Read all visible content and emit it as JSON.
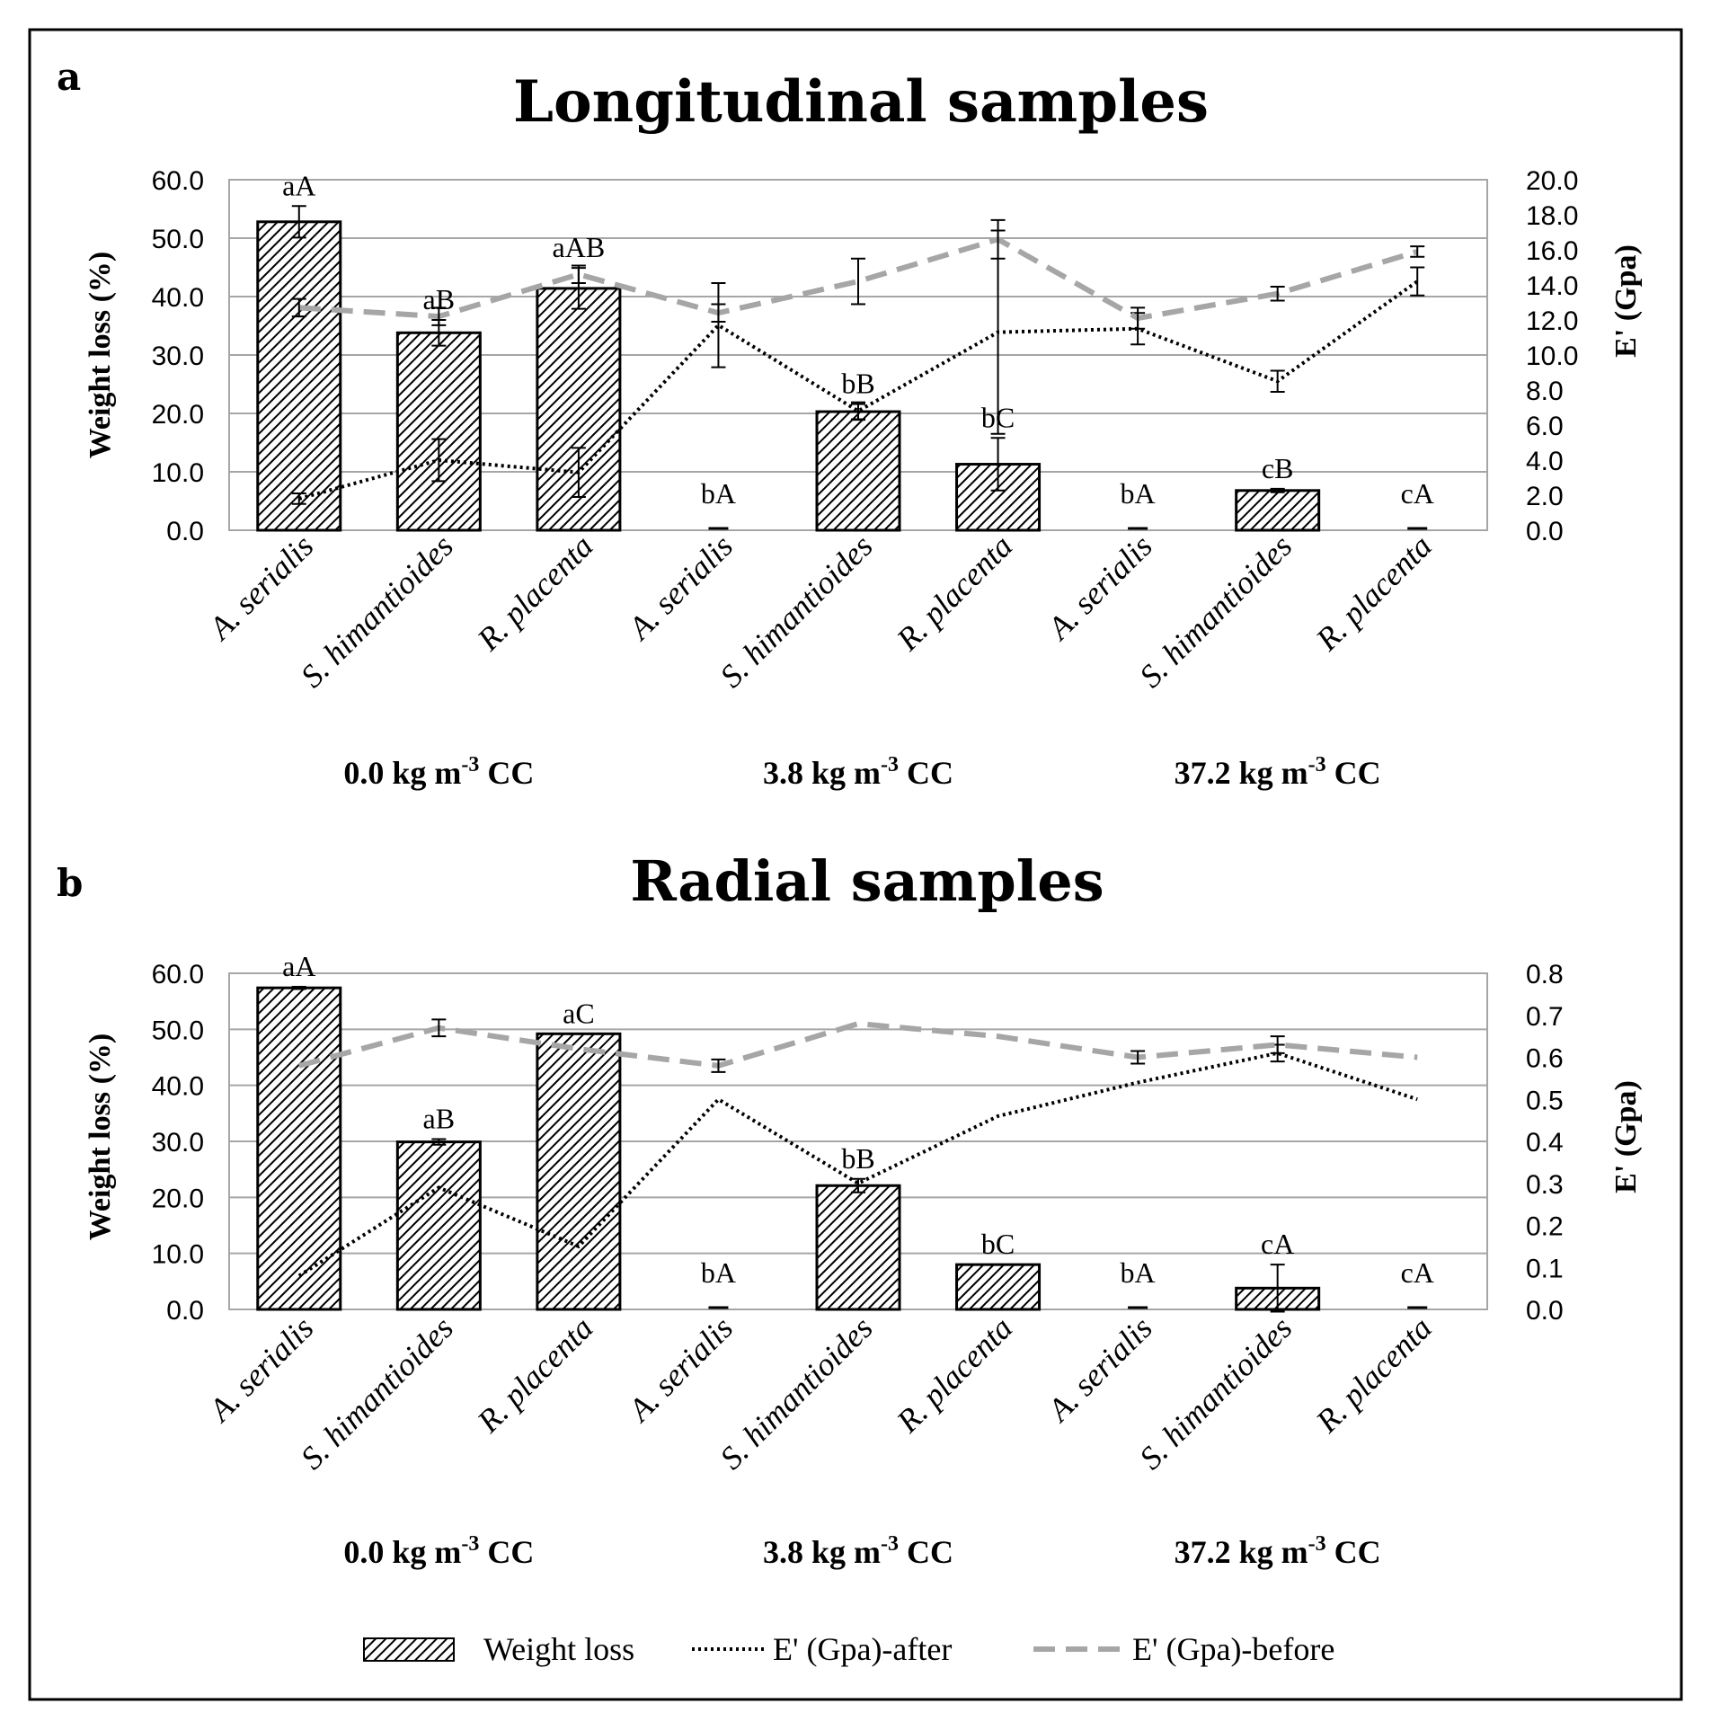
{
  "chart_data": [
    {
      "panel_label": "a",
      "title": "Longitudinal samples",
      "type": "bar+line",
      "categories": [
        "A. serialis",
        "S. himantioides",
        "R. placenta",
        "A. serialis",
        "S. himantioides",
        "R. placenta",
        "A. serialis",
        "S. himantioides",
        "R. placenta"
      ],
      "groups": [
        {
          "label_main": "0.0 kg m",
          "label_sup": "-3",
          "label_tail": " CC"
        },
        {
          "label_main": "3.8 kg m",
          "label_sup": "-3",
          "label_tail": "  CC"
        },
        {
          "label_main": "37.2 kg m",
          "label_sup": "-3",
          "label_tail": " CC"
        }
      ],
      "ylabel_left": "Weight loss (%)",
      "ylabel_right": "E' (Gpa)",
      "ylim_left": [
        0,
        60
      ],
      "ylim_right": [
        0,
        20
      ],
      "yticks_left": [
        "0.0",
        "10.0",
        "20.0",
        "30.0",
        "40.0",
        "50.0",
        "60.0"
      ],
      "yticks_right": [
        "0.0",
        "2.0",
        "4.0",
        "6.0",
        "8.0",
        "10.0",
        "12.0",
        "14.0",
        "16.0",
        "18.0",
        "20.0"
      ],
      "weight_loss": [
        52.8,
        33.8,
        41.4,
        0.2,
        20.3,
        11.3,
        0.2,
        6.8,
        0.1
      ],
      "weight_loss_err": [
        2.7,
        2.2,
        3.5,
        0,
        1.3,
        4.5,
        0,
        0.3,
        0
      ],
      "letters": [
        "aA",
        "aB",
        "aAB",
        "bA",
        "bB",
        "bC",
        "bA",
        "cB",
        "cA"
      ],
      "series": [
        {
          "name": "E' (Gpa)-after",
          "style": "dotted",
          "values": [
            1.8,
            4.0,
            3.3,
            11.7,
            6.8,
            11.3,
            11.5,
            8.5,
            14.2
          ],
          "errors": [
            0.3,
            1.2,
            1.4,
            2.4,
            0.5,
            5.8,
            0.9,
            0.6,
            0.8
          ]
        },
        {
          "name": "E' (Gpa)-before",
          "style": "dashed",
          "values": [
            12.7,
            12.2,
            14.6,
            12.4,
            14.2,
            16.6,
            12.1,
            13.5,
            15.9
          ],
          "errors": [
            0.5,
            0.5,
            0.5,
            0.5,
            1.3,
            1.1,
            0.6,
            0.4,
            0.3
          ]
        }
      ]
    },
    {
      "panel_label": "b",
      "title": "Radial samples",
      "type": "bar+line",
      "categories": [
        "A. serialis",
        "S. himantioides",
        "R. placenta",
        "A. serialis",
        "S. himantioides",
        "R. placenta",
        "A. serialis",
        "S. himantioides",
        "R. placenta"
      ],
      "groups": [
        {
          "label_main": "0.0 kg m",
          "label_sup": "-3",
          "label_tail": " CC"
        },
        {
          "label_main": "3.8 kg m",
          "label_sup": "-3",
          "label_tail": "  CC"
        },
        {
          "label_main": "37.2 kg m",
          "label_sup": "-3",
          "label_tail": " CC"
        }
      ],
      "ylabel_left": "Weight loss (%)",
      "ylabel_right": "E' (Gpa)",
      "ylim_left": [
        0,
        60
      ],
      "ylim_right": [
        0,
        0.8
      ],
      "yticks_left": [
        "0.0",
        "10.0",
        "20.0",
        "30.0",
        "40.0",
        "50.0",
        "60.0"
      ],
      "yticks_right": [
        "0.0",
        "0.1",
        "0.2",
        "0.3",
        "0.4",
        "0.5",
        "0.6",
        "0.7",
        "0.8"
      ],
      "weight_loss": [
        57.4,
        29.9,
        49.2,
        0.2,
        22.1,
        8.0,
        0.2,
        3.8,
        0.0
      ],
      "weight_loss_err": [
        0.2,
        0.5,
        0.0,
        0,
        1.2,
        0,
        0,
        4.2,
        0
      ],
      "letters": [
        "aA",
        "aB",
        "aC",
        "bA",
        "bB",
        "bC",
        "bA",
        "cA",
        "cA"
      ],
      "series": [
        {
          "name": "E' (Gpa)-after",
          "style": "dotted",
          "values": [
            0.08,
            0.29,
            0.15,
            0.5,
            0.3,
            0.46,
            0.54,
            0.61,
            0.5
          ],
          "errors": [
            0.0,
            0.0,
            0.0,
            0.0,
            0.0,
            0.0,
            0.0,
            0.02,
            0.0
          ]
        },
        {
          "name": "E' (Gpa)-before",
          "style": "dashed",
          "values": [
            0.58,
            0.67,
            0.62,
            0.58,
            0.68,
            0.65,
            0.6,
            0.63,
            0.6
          ],
          "errors": [
            0.0,
            0.02,
            0.0,
            0.015,
            0.0,
            0.0,
            0.015,
            0.02,
            0.0
          ]
        }
      ]
    }
  ],
  "legend": {
    "weight_loss": "Weight loss",
    "after": "E' (Gpa)-after",
    "before": "E' (Gpa)-before"
  },
  "colors": {
    "bar_stripe": "#000000",
    "after_line": "#000000",
    "before_line": "#a6a6a6",
    "grid": "#a6a6a6"
  }
}
